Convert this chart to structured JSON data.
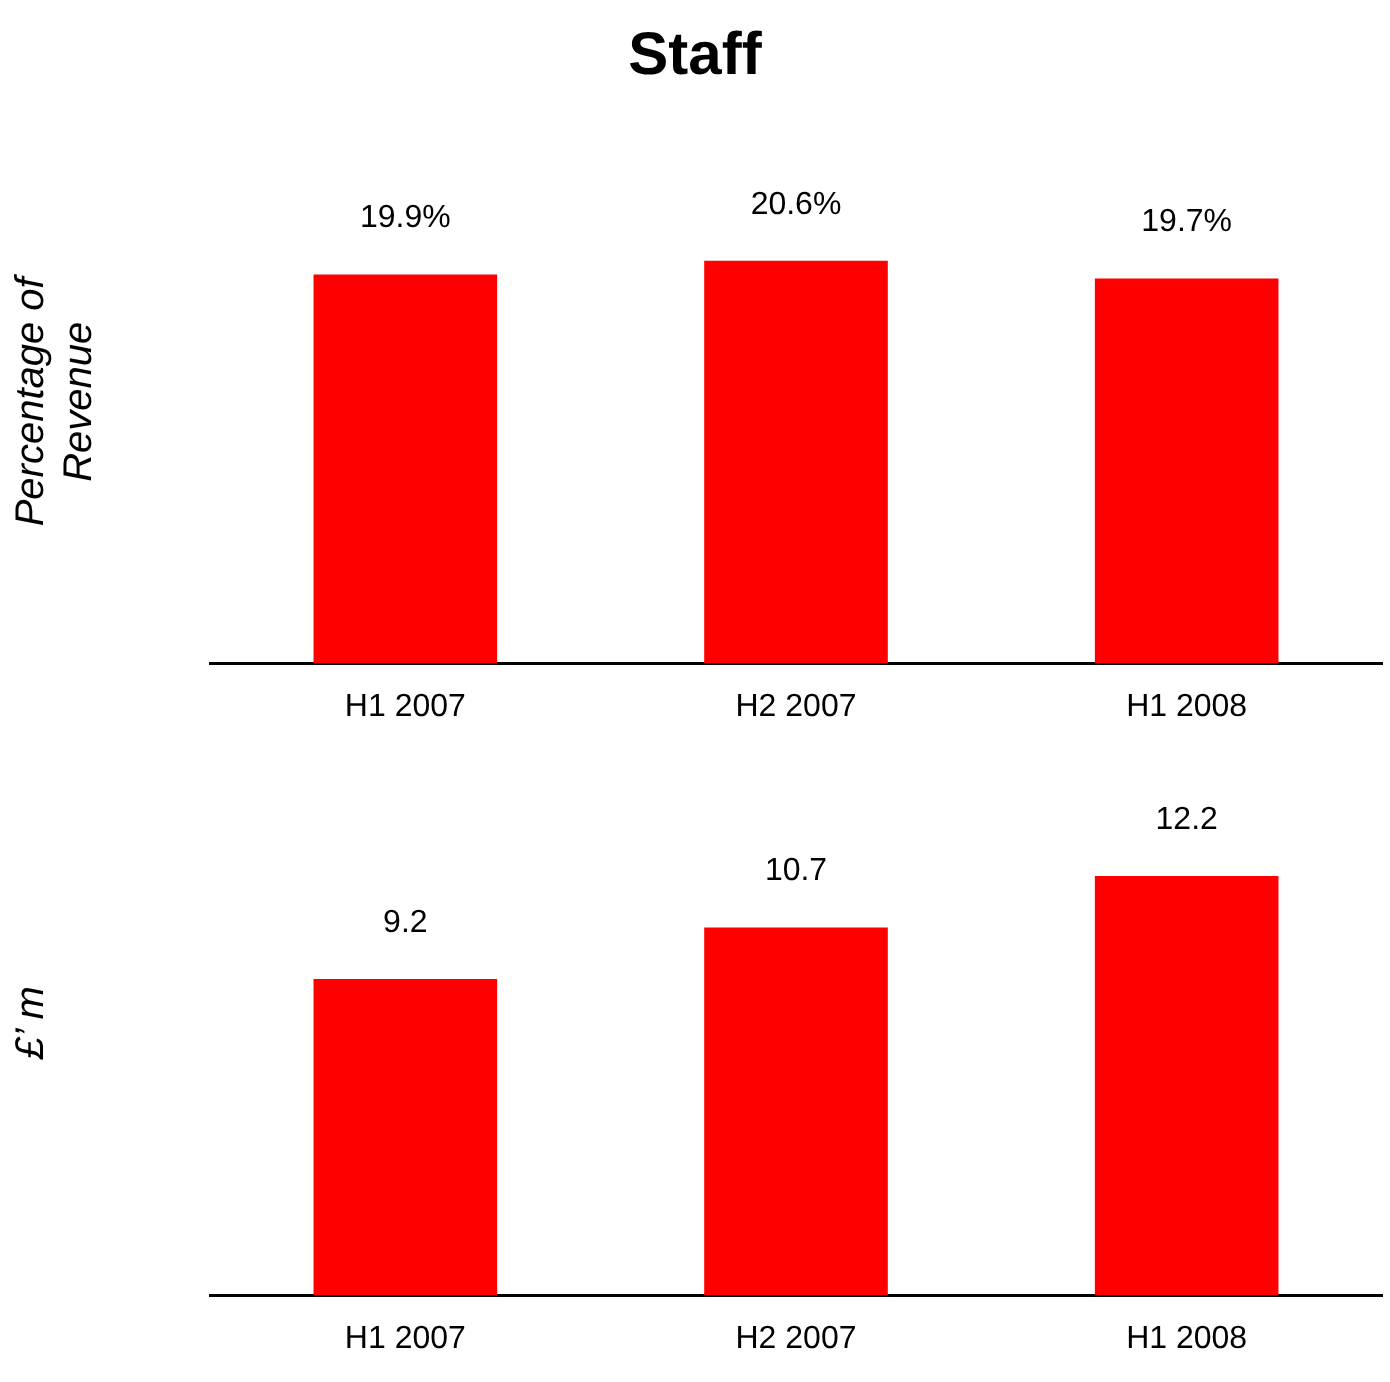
{
  "chart_data": [
    {
      "type": "bar",
      "title": "Staff",
      "ylabel": "Percentage of Revenue",
      "categories": [
        "H1 2007",
        "H2 2007",
        "H1 2008"
      ],
      "values": [
        19.9,
        20.6,
        19.7
      ],
      "value_labels": [
        "19.9%",
        "20.6%",
        "19.7%"
      ],
      "color": "#ff0000",
      "tick_labels": "x"
    },
    {
      "type": "bar",
      "ylabel": "£’ m",
      "categories": [
        "H1 2007",
        "H2 2007",
        "H1 2008"
      ],
      "values": [
        9.2,
        10.7,
        12.2
      ],
      "data_labels": true,
      "color": "#ff0000",
      "tick_labels": "x"
    }
  ]
}
